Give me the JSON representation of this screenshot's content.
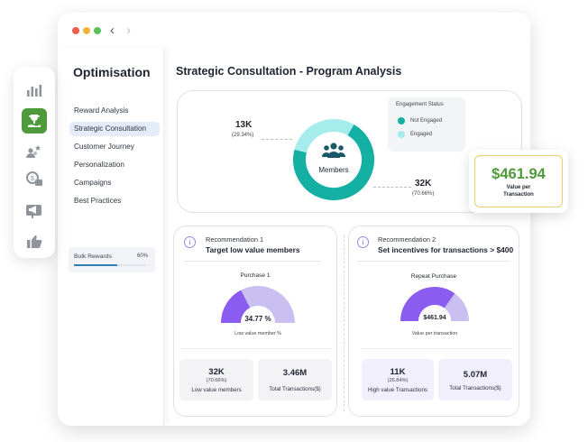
{
  "colors": {
    "engaged_teal": "#14b0a3",
    "not_engaged_light": "#a6ecec",
    "gauge_purple": "#8a5cf0",
    "gauge_lavender": "#c9bff0",
    "value_green": "#4f9a3a",
    "active_rail": "#4f9a3a"
  },
  "rail": {
    "icons": [
      "bar-chart-icon",
      "trophy-hand-icon",
      "users-star-icon",
      "coin-list-icon",
      "megaphone-icon",
      "thumbs-up-icon"
    ]
  },
  "sidebar": {
    "title": "Optimisation",
    "items": [
      {
        "label": "Reward Analysis"
      },
      {
        "label": "Strategic Consultation"
      },
      {
        "label": "Customer Journey"
      },
      {
        "label": "Personalization"
      },
      {
        "label": "Campaigns"
      },
      {
        "label": "Best Practices"
      }
    ],
    "active_index": 1,
    "bulk": {
      "label": "Bulk Rewards",
      "percent_text": "60%",
      "percent": 60
    }
  },
  "main": {
    "title": "Strategic Consultation - Program Analysis",
    "analysis": {
      "legend_title": "Engagement Status",
      "legend": [
        {
          "label": "Not Engaged"
        },
        {
          "label": "Engaged"
        }
      ],
      "center_label": "Members",
      "segments": [
        {
          "value": "13K",
          "percent": "(29.34%)",
          "share": 29.34
        },
        {
          "value": "32K",
          "percent": "(70.66%)",
          "share": 70.66
        }
      ]
    },
    "recommendations": [
      {
        "kicker": "Recommendation 1",
        "title": "Target low value members",
        "gauge_title": "Purchase 1",
        "gauge_value": "34.77 %",
        "gauge_share": 34.77,
        "gauge_caption": "Low value member %",
        "kpis": [
          {
            "value": "32K",
            "sub": "(70.66%)",
            "label": "Low value members"
          },
          {
            "value": "3.46M",
            "sub": "",
            "label": "Total Transactions($)"
          }
        ]
      },
      {
        "kicker": "Recommendation 2",
        "title": "Set incentives for transactions > $400",
        "gauge_title": "Repeat Purchase",
        "gauge_value": "$461.94",
        "gauge_share": 70,
        "gauge_caption": "Value per transaction",
        "kpis": [
          {
            "value": "11K",
            "sub": "(26.84%)",
            "label": "High value Transactions"
          },
          {
            "value": "5.07M",
            "sub": "",
            "label": "Total Transactions($)"
          }
        ]
      }
    ]
  },
  "value_card": {
    "amount": "$461.94",
    "label_line1": "Value per",
    "label_line2": "Transaction"
  }
}
